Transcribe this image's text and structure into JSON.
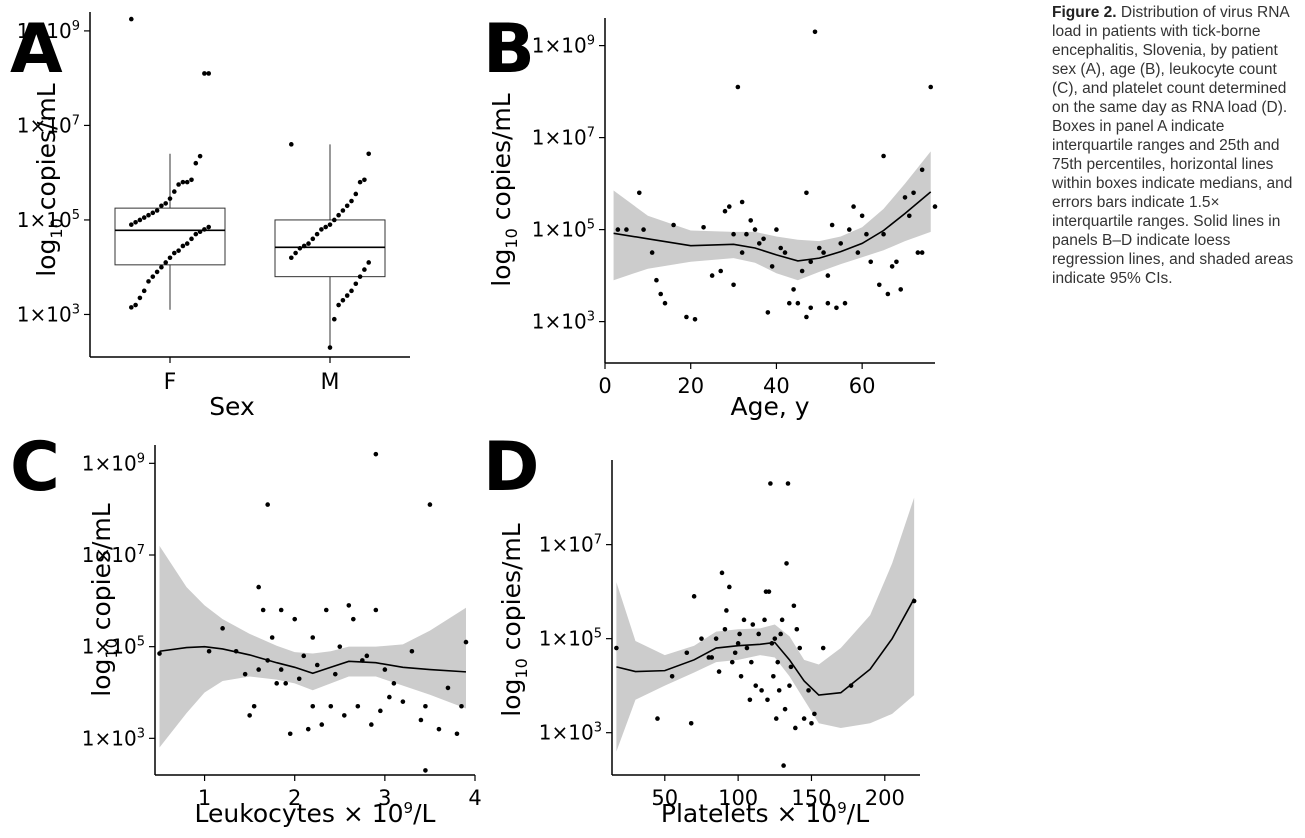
{
  "caption": {
    "label": "Figure 2.",
    "text": "Distribution of virus RNA load in patients with tick-borne encephalitis, Slovenia, by patient sex (A), age (B), leukocyte count (C), and platelet count determined on the same day as RNA load (D). Boxes in panel A indicate interquartile ranges and 25th and 75th percentiles, horizontal lines within boxes indicate medians, and errors bars indicate 1.5× interquartile ranges. Solid lines in panels B–D indicate loess regression lines, and shaded areas indicate 95% CIs."
  },
  "colors": {
    "ci_band": "#cccccc",
    "points": "#000000",
    "lines": "#000000"
  },
  "chart_data": [
    {
      "panel": "A",
      "type": "box",
      "categories": [
        "F",
        "M"
      ],
      "xlabel": "Sex",
      "ylabel": "log10 copies/mL",
      "y_scale": "log10",
      "yticks": [
        "1×10^3",
        "1×10^5",
        "1×10^7",
        "1×10^9"
      ],
      "ylim_log10": [
        2.1,
        9.4
      ],
      "boxes": [
        {
          "category": "F",
          "q1_log10": 4.05,
          "median_log10": 4.78,
          "q3_log10": 5.25,
          "whisker_low_log10": 3.1,
          "whisker_high_log10": 6.4
        },
        {
          "category": "M",
          "q1_log10": 3.8,
          "median_log10": 4.42,
          "q3_log10": 5.0,
          "whisker_low_log10": 2.25,
          "whisker_high_log10": 6.6
        }
      ],
      "points": {
        "F": [
          9.25,
          8.1,
          8.1,
          6.35,
          6.2,
          5.85,
          5.8,
          5.8,
          5.75,
          5.6,
          5.45,
          5.35,
          5.3,
          5.2,
          5.15,
          5.1,
          5.05,
          5.0,
          4.95,
          4.9,
          4.85,
          4.8,
          4.75,
          4.7,
          4.6,
          4.5,
          4.45,
          4.35,
          4.3,
          4.2,
          4.1,
          4.0,
          3.9,
          3.8,
          3.7,
          3.5,
          3.35,
          3.2,
          3.15
        ],
        "M": [
          6.6,
          6.4,
          5.85,
          5.8,
          5.55,
          5.4,
          5.3,
          5.2,
          5.1,
          5.0,
          4.9,
          4.85,
          4.8,
          4.7,
          4.6,
          4.5,
          4.45,
          4.4,
          4.3,
          4.2,
          4.1,
          3.95,
          3.8,
          3.65,
          3.5,
          3.4,
          3.3,
          3.2,
          2.9,
          2.3
        ]
      }
    },
    {
      "panel": "B",
      "type": "scatter",
      "xlabel": "Age, y",
      "ylabel": "log10 copies/mL",
      "y_scale": "log10",
      "xticks": [
        0,
        20,
        40,
        60
      ],
      "xlim": [
        0,
        77
      ],
      "yticks": [
        "1×10^3",
        "1×10^5",
        "1×10^7",
        "1×10^9"
      ],
      "ylim_log10": [
        2.1,
        9.6
      ],
      "points": [
        [
          3,
          5.0
        ],
        [
          5,
          5.0
        ],
        [
          8,
          5.8
        ],
        [
          9,
          5.0
        ],
        [
          11,
          4.5
        ],
        [
          12,
          3.9
        ],
        [
          13,
          3.6
        ],
        [
          14,
          3.4
        ],
        [
          16,
          5.1
        ],
        [
          19,
          3.1
        ],
        [
          21,
          3.05
        ],
        [
          23,
          5.05
        ],
        [
          25,
          4.0
        ],
        [
          27,
          4.1
        ],
        [
          28,
          5.4
        ],
        [
          29,
          5.5
        ],
        [
          30,
          4.9
        ],
        [
          30,
          3.8
        ],
        [
          31,
          8.1
        ],
        [
          32,
          4.5
        ],
        [
          32,
          5.6
        ],
        [
          33,
          4.9
        ],
        [
          34,
          5.2
        ],
        [
          35,
          5.0
        ],
        [
          36,
          4.7
        ],
        [
          37,
          4.8
        ],
        [
          38,
          3.2
        ],
        [
          39,
          4.2
        ],
        [
          40,
          5.0
        ],
        [
          41,
          4.6
        ],
        [
          42,
          4.5
        ],
        [
          43,
          3.4
        ],
        [
          44,
          3.7
        ],
        [
          45,
          3.4
        ],
        [
          46,
          4.1
        ],
        [
          47,
          3.1
        ],
        [
          47,
          5.8
        ],
        [
          48,
          4.3
        ],
        [
          48,
          3.3
        ],
        [
          49,
          9.3
        ],
        [
          50,
          4.6
        ],
        [
          51,
          4.5
        ],
        [
          52,
          4.0
        ],
        [
          52,
          3.4
        ],
        [
          53,
          5.1
        ],
        [
          54,
          3.3
        ],
        [
          55,
          4.7
        ],
        [
          56,
          3.4
        ],
        [
          57,
          5.0
        ],
        [
          58,
          5.5
        ],
        [
          59,
          4.5
        ],
        [
          60,
          5.3
        ],
        [
          61,
          4.9
        ],
        [
          62,
          4.3
        ],
        [
          64,
          3.8
        ],
        [
          65,
          4.9
        ],
        [
          65,
          6.6
        ],
        [
          66,
          3.6
        ],
        [
          67,
          4.2
        ],
        [
          68,
          4.3
        ],
        [
          69,
          3.7
        ],
        [
          70,
          5.7
        ],
        [
          71,
          5.3
        ],
        [
          72,
          5.8
        ],
        [
          73,
          4.5
        ],
        [
          74,
          6.3
        ],
        [
          74,
          4.5
        ],
        [
          76,
          8.1
        ],
        [
          77,
          5.5
        ]
      ],
      "loess": {
        "x": [
          2,
          10,
          20,
          30,
          35,
          40,
          45,
          50,
          55,
          60,
          65,
          70,
          76
        ],
        "fit": [
          4.92,
          4.8,
          4.65,
          4.68,
          4.6,
          4.45,
          4.32,
          4.38,
          4.52,
          4.7,
          4.98,
          5.35,
          5.82
        ],
        "lower": [
          3.9,
          4.15,
          4.3,
          4.38,
          4.28,
          4.05,
          3.9,
          4.08,
          4.25,
          4.4,
          4.55,
          4.75,
          4.95
        ],
        "upper": [
          5.85,
          5.3,
          4.98,
          4.95,
          4.95,
          4.85,
          4.78,
          4.75,
          4.85,
          5.05,
          5.45,
          6.0,
          6.7
        ]
      }
    },
    {
      "panel": "C",
      "type": "scatter",
      "xlabel": "Leukocytes × 10⁹/L",
      "ylabel": "log10 copies/mL",
      "y_scale": "log10",
      "xticks": [
        1,
        2,
        3,
        4
      ],
      "xlim": [
        0.45,
        4.0
      ],
      "yticks": [
        "1×10^3",
        "1×10^5",
        "1×10^7",
        "1×10^9"
      ],
      "ylim_log10": [
        2.2,
        9.4
      ],
      "points": [
        [
          0.5,
          4.85
        ],
        [
          1.05,
          4.9
        ],
        [
          1.2,
          5.4
        ],
        [
          1.35,
          4.9
        ],
        [
          1.45,
          4.4
        ],
        [
          1.5,
          3.5
        ],
        [
          1.55,
          3.7
        ],
        [
          1.6,
          6.3
        ],
        [
          1.6,
          4.5
        ],
        [
          1.65,
          5.8
        ],
        [
          1.7,
          4.7
        ],
        [
          1.7,
          8.1
        ],
        [
          1.75,
          5.2
        ],
        [
          1.8,
          4.2
        ],
        [
          1.85,
          4.5
        ],
        [
          1.85,
          5.8
        ],
        [
          1.9,
          4.2
        ],
        [
          1.95,
          3.1
        ],
        [
          2.0,
          5.6
        ],
        [
          2.05,
          4.3
        ],
        [
          2.1,
          4.8
        ],
        [
          2.15,
          3.2
        ],
        [
          2.2,
          5.2
        ],
        [
          2.2,
          3.7
        ],
        [
          2.25,
          4.6
        ],
        [
          2.3,
          3.3
        ],
        [
          2.35,
          5.8
        ],
        [
          2.4,
          3.7
        ],
        [
          2.45,
          4.4
        ],
        [
          2.5,
          5.0
        ],
        [
          2.55,
          3.5
        ],
        [
          2.6,
          5.9
        ],
        [
          2.65,
          5.6
        ],
        [
          2.7,
          3.7
        ],
        [
          2.75,
          4.7
        ],
        [
          2.8,
          4.8
        ],
        [
          2.85,
          3.3
        ],
        [
          2.9,
          9.2
        ],
        [
          2.9,
          5.8
        ],
        [
          2.95,
          3.6
        ],
        [
          3.0,
          4.5
        ],
        [
          3.05,
          3.9
        ],
        [
          3.1,
          4.2
        ],
        [
          3.2,
          3.8
        ],
        [
          3.3,
          4.9
        ],
        [
          3.4,
          3.4
        ],
        [
          3.45,
          3.7
        ],
        [
          3.5,
          8.1
        ],
        [
          3.6,
          3.2
        ],
        [
          3.7,
          4.1
        ],
        [
          3.8,
          3.1
        ],
        [
          3.85,
          3.7
        ],
        [
          3.9,
          5.1
        ],
        [
          3.45,
          2.3
        ]
      ],
      "loess": {
        "x": [
          0.5,
          0.8,
          1.0,
          1.2,
          1.5,
          1.8,
          2.0,
          2.2,
          2.4,
          2.6,
          2.9,
          3.2,
          3.5,
          3.9
        ],
        "fit": [
          4.9,
          4.98,
          5.0,
          4.95,
          4.82,
          4.65,
          4.55,
          4.42,
          4.55,
          4.68,
          4.65,
          4.55,
          4.5,
          4.45
        ],
        "lower": [
          2.8,
          3.55,
          4.0,
          4.25,
          4.35,
          4.28,
          4.2,
          4.05,
          4.2,
          4.35,
          4.35,
          4.15,
          3.95,
          3.65
        ],
        "upper": [
          7.2,
          6.3,
          5.9,
          5.6,
          5.28,
          5.02,
          4.88,
          4.85,
          4.9,
          5.0,
          5.0,
          5.05,
          5.35,
          5.85
        ]
      }
    },
    {
      "panel": "D",
      "type": "scatter",
      "xlabel": "Platelets × 10⁹/L",
      "ylabel": "log10 copies/mL",
      "y_scale": "log10",
      "xticks": [
        50,
        100,
        150,
        200
      ],
      "xlim": [
        14,
        224
      ],
      "yticks": [
        "1×10^3",
        "1×10^5",
        "1×10^7"
      ],
      "ylim_log10": [
        2.1,
        8.8
      ],
      "points": [
        [
          17,
          4.8
        ],
        [
          45,
          3.3
        ],
        [
          55,
          4.2
        ],
        [
          65,
          4.7
        ],
        [
          68,
          3.2
        ],
        [
          70,
          5.9
        ],
        [
          75,
          5.0
        ],
        [
          80,
          4.6
        ],
        [
          82,
          4.6
        ],
        [
          85,
          5.0
        ],
        [
          87,
          4.3
        ],
        [
          89,
          6.4
        ],
        [
          91,
          5.2
        ],
        [
          92,
          5.6
        ],
        [
          94,
          6.1
        ],
        [
          96,
          4.5
        ],
        [
          98,
          4.7
        ],
        [
          100,
          4.9
        ],
        [
          101,
          5.1
        ],
        [
          102,
          4.2
        ],
        [
          104,
          5.4
        ],
        [
          106,
          4.8
        ],
        [
          108,
          3.7
        ],
        [
          109,
          4.5
        ],
        [
          110,
          5.3
        ],
        [
          112,
          4.0
        ],
        [
          114,
          5.1
        ],
        [
          116,
          3.9
        ],
        [
          118,
          5.4
        ],
        [
          119,
          6.0
        ],
        [
          120,
          3.7
        ],
        [
          121,
          6.0
        ],
        [
          122,
          8.3
        ],
        [
          123,
          4.9
        ],
        [
          124,
          4.2
        ],
        [
          125,
          5.0
        ],
        [
          126,
          3.3
        ],
        [
          127,
          4.5
        ],
        [
          128,
          3.9
        ],
        [
          129,
          5.1
        ],
        [
          130,
          5.4
        ],
        [
          131,
          2.3
        ],
        [
          132,
          3.5
        ],
        [
          133,
          6.6
        ],
        [
          134,
          8.3
        ],
        [
          135,
          4.0
        ],
        [
          136,
          4.4
        ],
        [
          138,
          5.7
        ],
        [
          139,
          3.1
        ],
        [
          140,
          5.2
        ],
        [
          142,
          4.8
        ],
        [
          145,
          3.3
        ],
        [
          148,
          3.9
        ],
        [
          150,
          3.2
        ],
        [
          152,
          3.4
        ],
        [
          158,
          4.8
        ],
        [
          177,
          4.0
        ],
        [
          220,
          5.8
        ]
      ],
      "loess": {
        "x": [
          17,
          30,
          50,
          70,
          85,
          100,
          115,
          125,
          135,
          145,
          155,
          170,
          190,
          205,
          220
        ],
        "fit": [
          4.4,
          4.3,
          4.32,
          4.55,
          4.8,
          4.85,
          4.88,
          4.92,
          4.55,
          4.1,
          3.8,
          3.85,
          4.35,
          5.0,
          5.85
        ],
        "lower": [
          2.6,
          3.7,
          4.0,
          4.28,
          4.5,
          4.55,
          4.65,
          4.6,
          4.2,
          3.7,
          3.2,
          3.1,
          3.2,
          3.4,
          3.8
        ],
        "upper": [
          6.2,
          4.95,
          4.65,
          4.85,
          5.15,
          5.2,
          5.22,
          5.3,
          5.05,
          4.55,
          4.45,
          4.8,
          5.5,
          6.6,
          8.0
        ]
      }
    }
  ]
}
